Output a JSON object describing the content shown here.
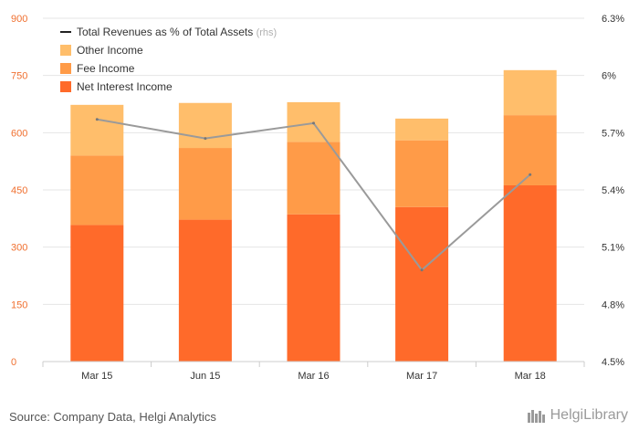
{
  "chart_data": {
    "type": "bar",
    "stacked": true,
    "categories": [
      "Mar 15",
      "Jun 15",
      "Mar 16",
      "Mar 17",
      "Mar 18"
    ],
    "series": [
      {
        "name": "Net Interest Income",
        "color": "#ff6a2a",
        "values": [
          358,
          372,
          386,
          405,
          462
        ]
      },
      {
        "name": "Fee Income",
        "color": "#ff9b48",
        "values": [
          182,
          188,
          190,
          175,
          184
        ]
      },
      {
        "name": "Other Income",
        "color": "#ffbe6b",
        "values": [
          133,
          118,
          104,
          57,
          118
        ]
      }
    ],
    "line_series": {
      "name": "Total Revenues as % of Total Assets",
      "name_suffix": "(rhs)",
      "color": "#9a9a9a",
      "axis": "right",
      "values": [
        5.77,
        5.67,
        5.75,
        4.98,
        5.48
      ]
    },
    "ylim_left": [
      0,
      900
    ],
    "yticks_left": [
      "0",
      "150",
      "300",
      "450",
      "600",
      "750",
      "900"
    ],
    "ylim_right": [
      4.5,
      6.3
    ],
    "yticks_right": [
      "4.5%",
      "4.8%",
      "5.1%",
      "5.4%",
      "5.7%",
      "6%",
      "6.3%"
    ],
    "legend_position": "top-left",
    "grid": true
  },
  "footer": {
    "source": "Source: Company Data, Helgi Analytics",
    "brand": "HelgiLibrary"
  }
}
